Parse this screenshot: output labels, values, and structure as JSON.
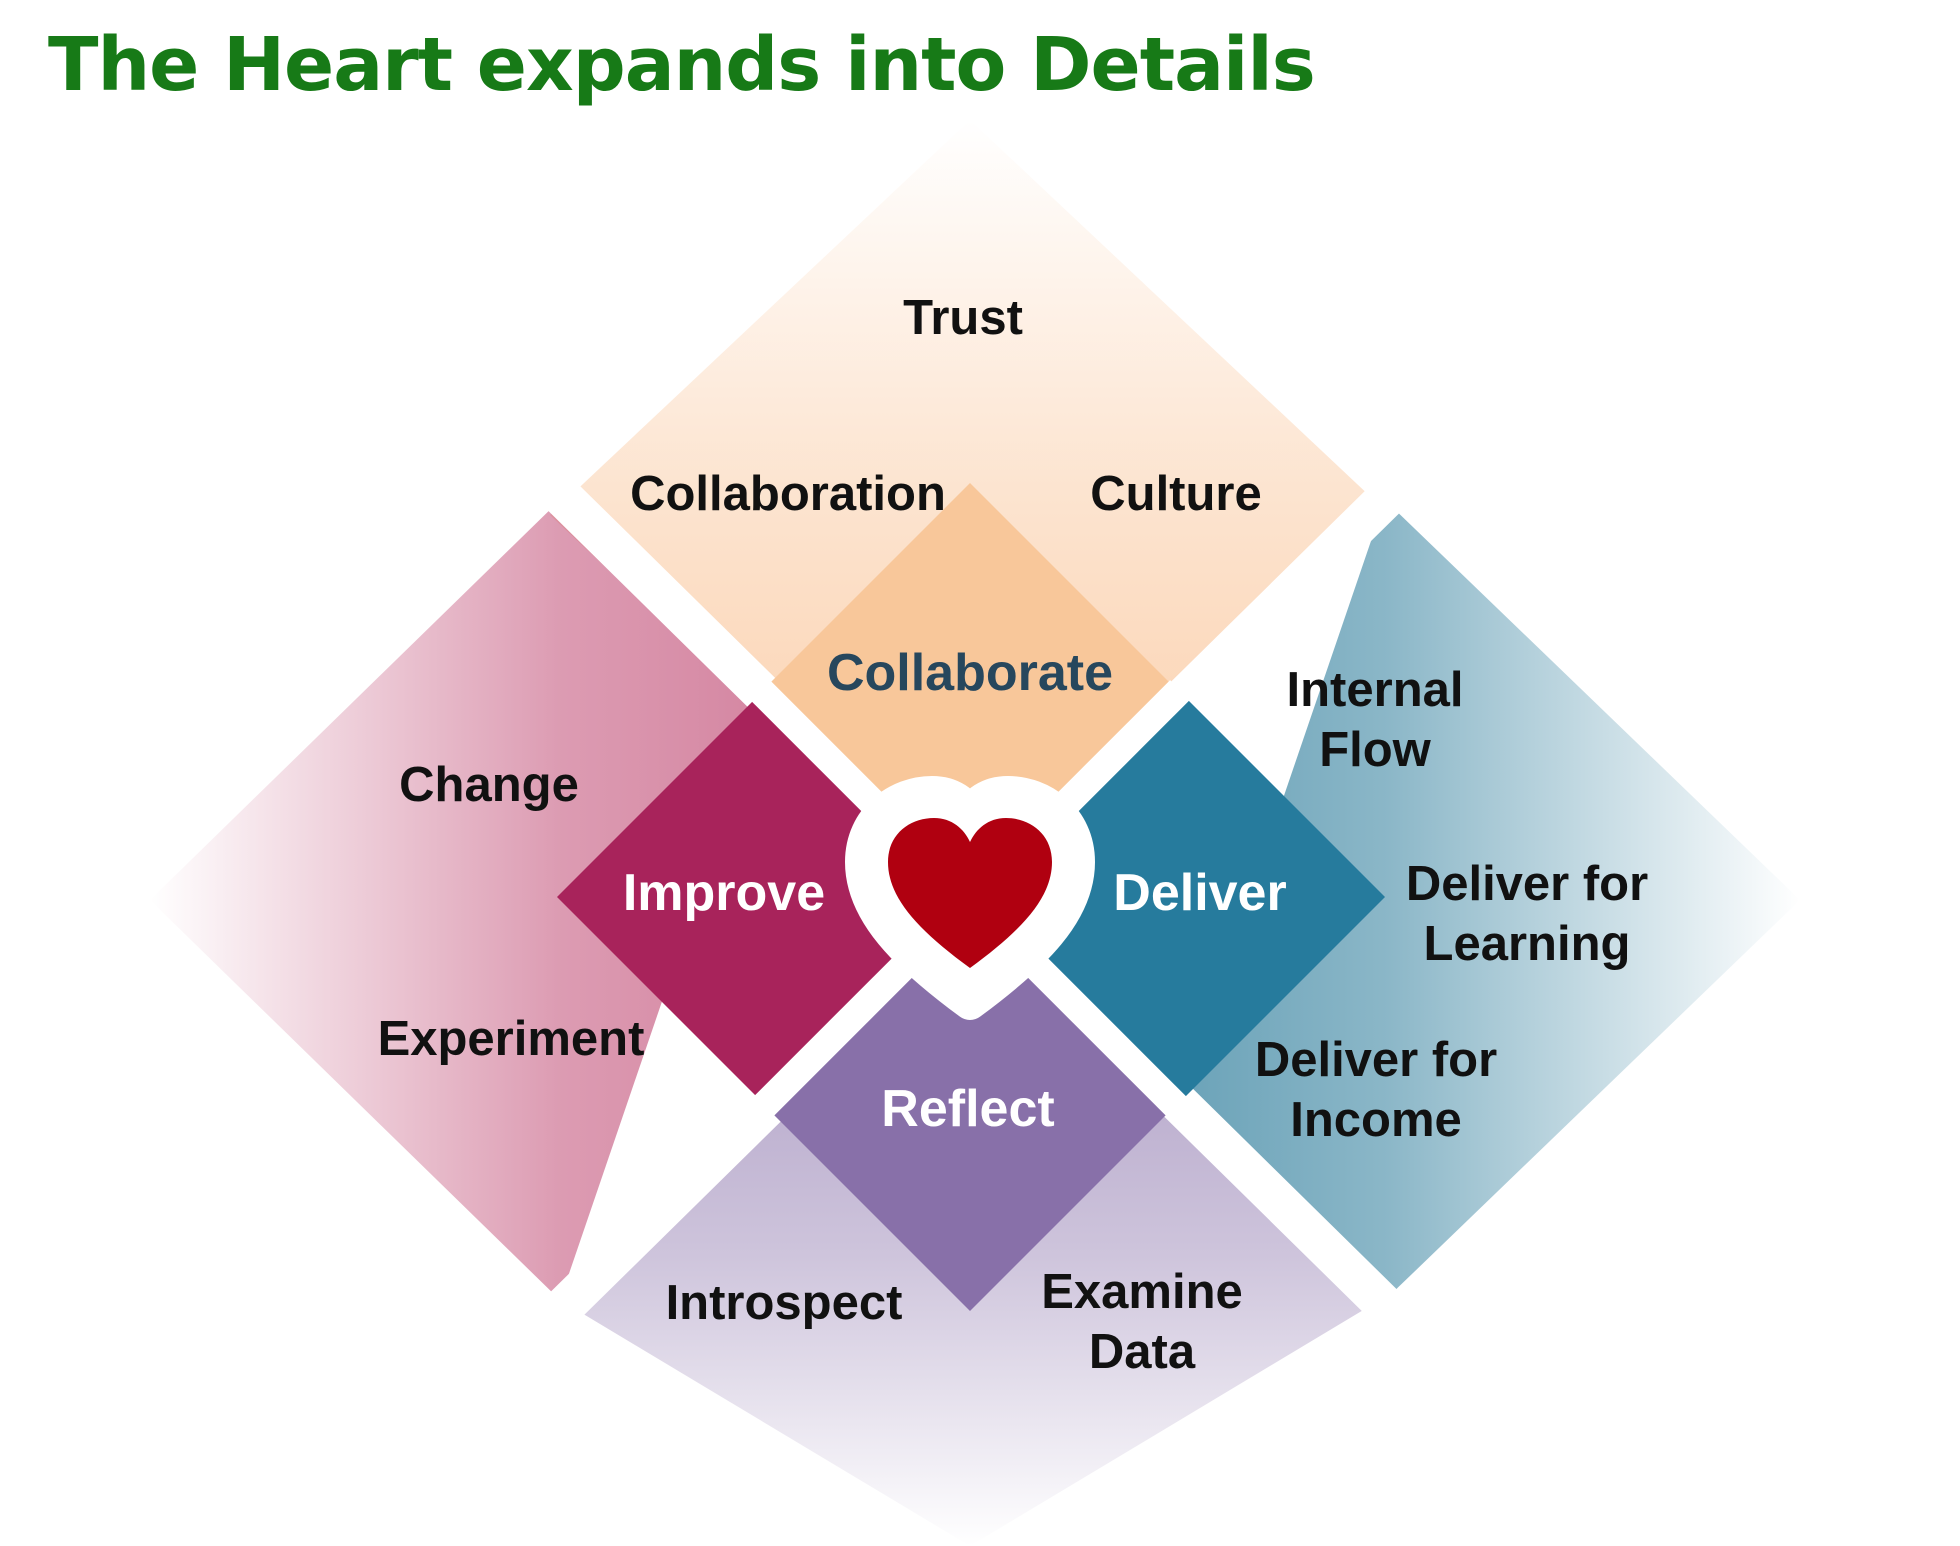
{
  "title": "The Heart expands into Details",
  "center": {
    "icon": "heart-icon",
    "color": "#b00010"
  },
  "quadrants": {
    "top": {
      "core": "Collaborate",
      "core_color": "#f8c79a",
      "glow_color": "#f6a25c",
      "details": {
        "apex": "Trust",
        "left": "Collaboration",
        "right": "Culture"
      }
    },
    "left": {
      "core": "Improve",
      "core_color": "#a8235b",
      "glow_color": "#c5597f",
      "details": {
        "upper": "Change",
        "lower": "Experiment"
      }
    },
    "right": {
      "core": "Deliver",
      "core_color": "#267b9d",
      "glow_color": "#2b7b9a",
      "details": {
        "upper": "Internal\nFlow",
        "apex": "Deliver for\nLearning",
        "lower": "Deliver for\nIncome"
      }
    },
    "bottom": {
      "core": "Reflect",
      "core_color": "#8870a9",
      "glow_color": "#8a73ab",
      "details": {
        "left": "Introspect",
        "right": "Examine\nData"
      }
    }
  }
}
